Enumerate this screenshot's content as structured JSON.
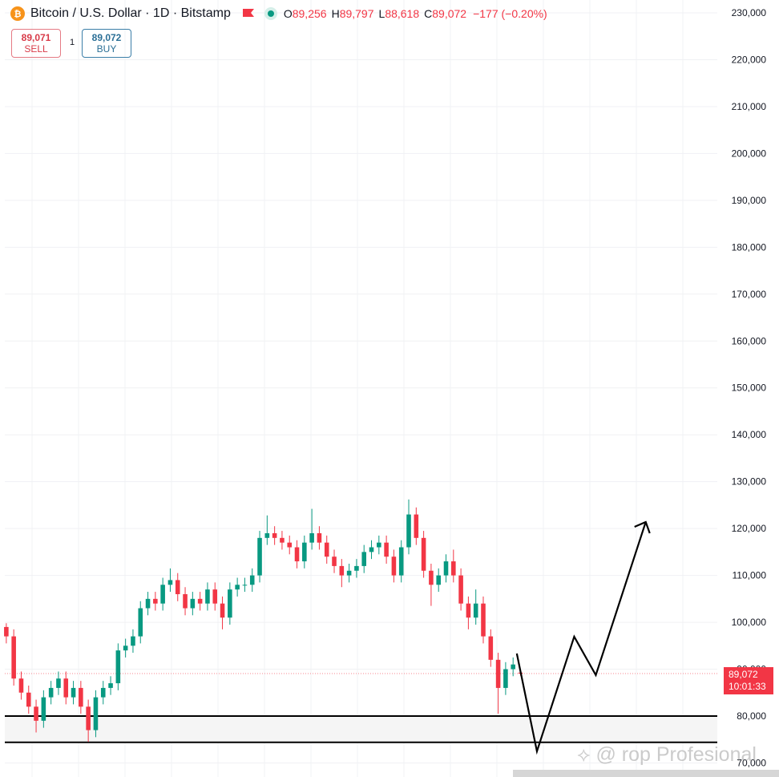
{
  "chart_data": {
    "type": "candlestick",
    "title": "Bitcoin / U.S. Dollar · 1D · Bitstamp",
    "ohlc_legend": [
      {
        "label": "O",
        "value": "89,256"
      },
      {
        "label": "H",
        "value": "89,797"
      },
      {
        "label": "L",
        "value": "88,618"
      },
      {
        "label": "C",
        "value": "89,072"
      }
    ],
    "change": "−177 (−0.20%)",
    "sell": {
      "price": "89,071",
      "label": "SELL"
    },
    "quantity": "1",
    "buy": {
      "price": "89,072",
      "label": "BUY"
    },
    "last_price": {
      "value": 89072,
      "label": "89,072",
      "countdown": "10:01:33"
    },
    "watermark": "rop Profesional",
    "up_color": "#089981",
    "down_color": "#f23645",
    "xlim": [
      -0.2,
      95.4
    ],
    "ylim": [
      67000,
      232740
    ],
    "yticks": [
      {
        "value": 70000,
        "label": "70,000"
      },
      {
        "value": 80000,
        "label": "80,000"
      },
      {
        "value": 90000,
        "label": "90,000"
      },
      {
        "value": 100000,
        "label": "100,000"
      },
      {
        "value": 110000,
        "label": "110,000"
      },
      {
        "value": 120000,
        "label": "120,000"
      },
      {
        "value": 130000,
        "label": "130,000"
      },
      {
        "value": 140000,
        "label": "140,000"
      },
      {
        "value": 150000,
        "label": "150,000"
      },
      {
        "value": 160000,
        "label": "160,000"
      },
      {
        "value": 170000,
        "label": "170,000"
      },
      {
        "value": 180000,
        "label": "180,000"
      },
      {
        "value": 190000,
        "label": "190,000"
      },
      {
        "value": 200000,
        "label": "200,000"
      },
      {
        "value": 210000,
        "label": "210,000"
      },
      {
        "value": 220000,
        "label": "220,000"
      },
      {
        "value": 230000,
        "label": "230,000"
      }
    ],
    "grid": true,
    "series": [
      {
        "name": "BTCUSD",
        "open": [
          99000,
          97000,
          88000,
          85000,
          82000,
          79000,
          84000,
          86000,
          88000,
          84000,
          86000,
          82000,
          77000,
          84000,
          86000,
          87000,
          94000,
          95000,
          97000,
          103000,
          105000,
          104000,
          108000,
          109000,
          106000,
          103000,
          105000,
          104000,
          107000,
          104000,
          101000,
          107000,
          108000,
          108000,
          110000,
          118000,
          119000,
          118000,
          117000,
          116000,
          113000,
          117000,
          119000,
          117000,
          114000,
          112000,
          110000,
          111000,
          112000,
          115000,
          116000,
          117000,
          114000,
          110000,
          116000,
          123000,
          118000,
          111000,
          108000,
          110000,
          113000,
          110000,
          104000,
          101000,
          104000,
          97000,
          92000,
          86000,
          90000,
          89256
        ],
        "high": [
          99800,
          98500,
          89500,
          86500,
          83500,
          85500,
          87500,
          89500,
          89500,
          87500,
          87500,
          83500,
          85500,
          87500,
          88500,
          95500,
          96500,
          98500,
          104500,
          106500,
          106500,
          109500,
          111500,
          110500,
          107500,
          106500,
          106500,
          108500,
          108500,
          105500,
          108500,
          109500,
          109500,
          111500,
          119500,
          122800,
          120500,
          119500,
          118500,
          117500,
          118500,
          124200,
          120500,
          118500,
          115500,
          113500,
          112500,
          113500,
          116500,
          117500,
          118500,
          118500,
          115500,
          117500,
          126200,
          124500,
          119500,
          112500,
          111500,
          114500,
          115500,
          111500,
          105500,
          107000,
          105500,
          98500,
          93500,
          91500,
          92500,
          89797
        ],
        "low": [
          95500,
          86500,
          83500,
          80500,
          76500,
          77500,
          82500,
          84500,
          82500,
          82500,
          80500,
          74500,
          75500,
          82500,
          84500,
          85500,
          92500,
          93500,
          95500,
          101500,
          102500,
          102500,
          106500,
          104500,
          101500,
          101500,
          102500,
          102500,
          102500,
          98500,
          99500,
          105500,
          106500,
          106500,
          108500,
          116500,
          116500,
          115500,
          114500,
          111500,
          111500,
          115500,
          115500,
          112500,
          110500,
          107500,
          108500,
          109500,
          110500,
          113500,
          114500,
          112500,
          108500,
          108500,
          114500,
          116500,
          109500,
          103500,
          106500,
          108500,
          108500,
          102500,
          98500,
          99500,
          95500,
          90500,
          80500,
          84500,
          88500,
          88618
        ],
        "close": [
          97000,
          88000,
          85000,
          82000,
          79000,
          84000,
          86000,
          88000,
          84000,
          86000,
          82000,
          77000,
          84000,
          86000,
          87000,
          94000,
          95000,
          97000,
          103000,
          105000,
          104000,
          108000,
          109000,
          106000,
          103000,
          105000,
          104000,
          107000,
          104000,
          101000,
          107000,
          108000,
          108000,
          110000,
          118000,
          119000,
          118000,
          117000,
          116000,
          113000,
          117000,
          119000,
          117000,
          114000,
          112000,
          110000,
          111000,
          112000,
          115000,
          116000,
          117000,
          114000,
          110000,
          116000,
          123000,
          118000,
          111000,
          108000,
          110000,
          113000,
          110000,
          104000,
          101000,
          104000,
          97000,
          92000,
          86000,
          90000,
          91000,
          89072
        ]
      }
    ],
    "support_zone": {
      "low": 74400,
      "high": 80000
    },
    "projection": {
      "x": [
        68.5,
        71.2,
        76.2,
        79.1,
        85.8
      ],
      "y": [
        93340,
        72480,
        96940,
        88730,
        121400
      ]
    }
  }
}
